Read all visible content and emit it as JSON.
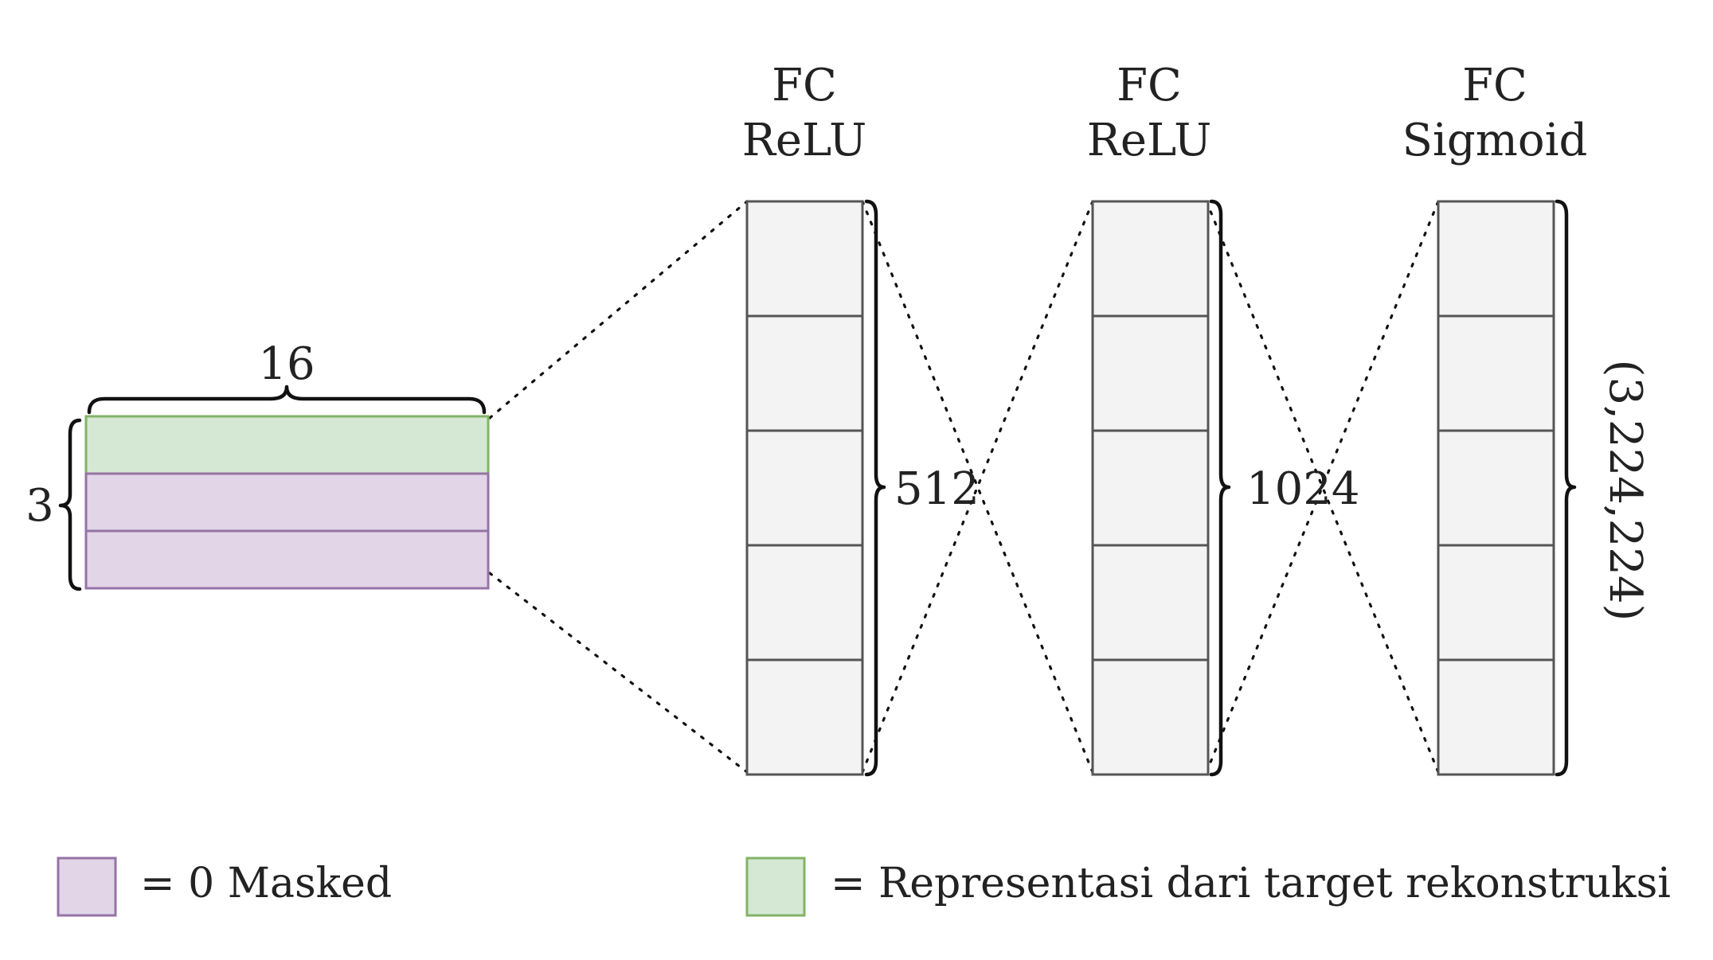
{
  "input_block": {
    "width_label": "16",
    "height_label": "3",
    "rows": [
      "target",
      "masked",
      "masked"
    ]
  },
  "layers": [
    {
      "line1": "FC",
      "line2": "ReLU",
      "size_label": "512",
      "cells": 5
    },
    {
      "line1": "FC",
      "line2": "ReLU",
      "size_label": "1024",
      "cells": 5
    },
    {
      "line1": "FC",
      "line2": "Sigmoid",
      "size_label": "(3,224,224)",
      "cells": 5
    }
  ],
  "legend": [
    {
      "key": "masked",
      "text": "= 0 Masked"
    },
    {
      "key": "target",
      "text": "= Representasi dari target rekonstruksi"
    }
  ],
  "colors": {
    "target_fill": "#d5e8d4",
    "target_stroke": "#82b366",
    "masked_fill": "#e1d5e7",
    "masked_stroke": "#9673a6",
    "layer_fill": "#f3f3f3",
    "layer_stroke": "#555555"
  }
}
